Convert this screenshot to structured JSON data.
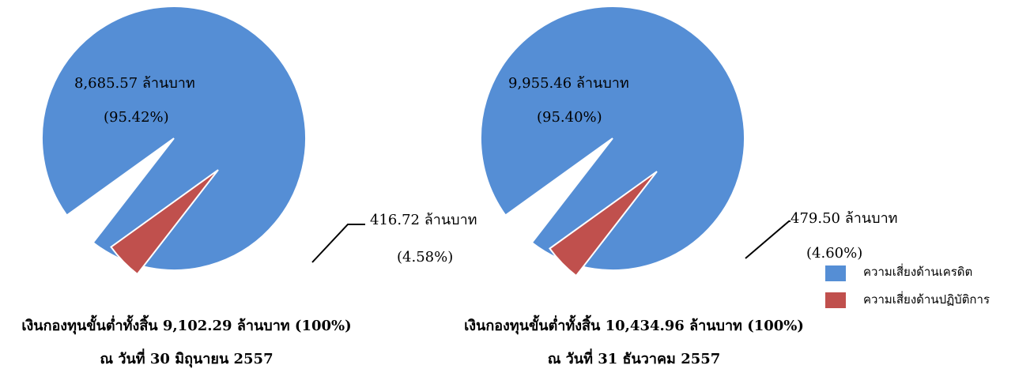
{
  "chart_data": [
    {
      "type": "pie",
      "slices": [
        {
          "name": "ความเสี่ยงด้านเครดิต",
          "value": 8685.57,
          "label": "8,685.57 ล้านบาท",
          "pct_label": "(95.42%)",
          "color": "#558ED5"
        },
        {
          "name": "ความเสี่ยงด้านปฏิบัติการ",
          "value": 416.72,
          "label": "416.72 ล้านบาท",
          "pct_label": "(4.58%)",
          "color": "#C0504D"
        }
      ],
      "caption": "เงินกองทุนขั้นต่ำทั้งสิ้น 9,102.29 ล้านบาท (100%)",
      "date": "ณ วันที่ 30 มิถุนายน 2557"
    },
    {
      "type": "pie",
      "slices": [
        {
          "name": "ความเสี่ยงด้านเครดิต",
          "value": 9955.46,
          "label": "9,955.46 ล้านบาท",
          "pct_label": "(95.40%)",
          "color": "#558ED5"
        },
        {
          "name": "ความเสี่ยงด้านปฏิบัติการ",
          "value": 479.5,
          "label": "479.50 ล้านบาท",
          "pct_label": "(4.60%)",
          "color": "#C0504D"
        }
      ],
      "caption": "เงินกองทุนขั้นต่ำทั้งสิ้น 10,434.96 ล้านบาท (100%)",
      "date": "ณ วันที่ 31 ธันวาคม 2557"
    }
  ],
  "legend": [
    {
      "label": "ความเสี่ยงด้านเครดิต",
      "color": "#558ED5"
    },
    {
      "label": "ความเสี่ยงด้านปฏิบัติการ",
      "color": "#C0504D"
    }
  ]
}
